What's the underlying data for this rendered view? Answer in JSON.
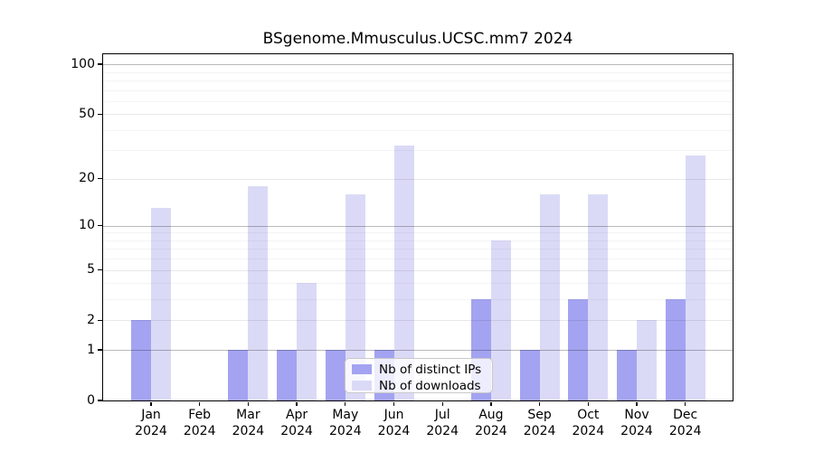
{
  "chart_data": {
    "type": "bar",
    "title": "BSgenome.Mmusculus.UCSC.mm7 2024",
    "categories": [
      "Jan",
      "Feb",
      "Mar",
      "Apr",
      "May",
      "Jun",
      "Jul",
      "Aug",
      "Sep",
      "Oct",
      "Nov",
      "Dec"
    ],
    "year_label": "2024",
    "series": [
      {
        "name": "Nb of distinct IPs",
        "color": "#a3a3f2",
        "values": [
          2,
          0,
          1,
          1,
          1,
          1,
          0,
          3,
          1,
          3,
          1,
          3
        ]
      },
      {
        "name": "Nb of downloads",
        "color": "#dadaf7",
        "values": [
          13,
          0,
          18,
          4,
          16,
          32,
          0,
          8,
          16,
          16,
          2,
          28
        ]
      }
    ],
    "xlabel": "",
    "ylabel": "",
    "yscale": "log1p",
    "ylim": [
      0,
      115
    ],
    "yticks": [
      0,
      1,
      2,
      5,
      10,
      20,
      50,
      100
    ],
    "decade_gridlines": [
      1,
      10,
      100
    ],
    "major_gridlines": [
      2,
      5,
      20,
      50
    ],
    "minor_gridlines": [
      3,
      4,
      6,
      7,
      8,
      9,
      30,
      40,
      60,
      70,
      80,
      90
    ],
    "grid": "on",
    "legend_position": "lower center"
  }
}
